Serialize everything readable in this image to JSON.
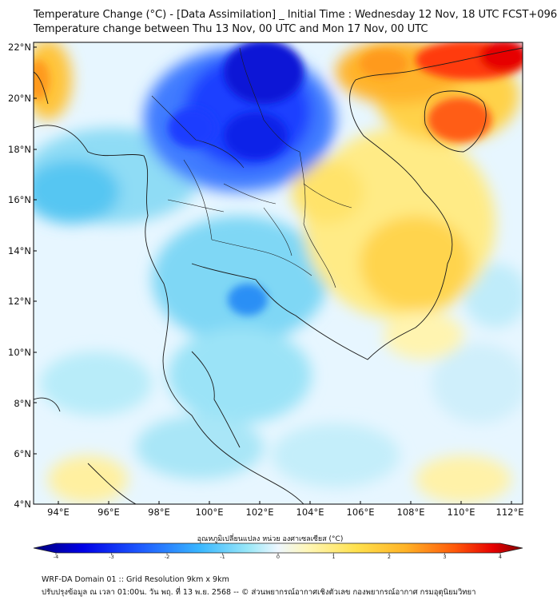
{
  "header": {
    "title_line1": "Temperature Change (°C) - [Data Assimilation] _ Initial Time : Wednesday 12 Nov, 18 UTC FCST+096",
    "title_line2": "Temperature change between Thu 13 Nov, 00 UTC and Mon 17 Nov, 00 UTC"
  },
  "map": {
    "lat_labels": [
      "22°N",
      "20°N",
      "18°N",
      "16°N",
      "14°N",
      "12°N",
      "10°N",
      "8°N",
      "6°N",
      "4°N"
    ],
    "lon_labels": [
      "94°E",
      "96°E",
      "98°E",
      "100°E",
      "102°E",
      "104°E",
      "106°E",
      "108°E",
      "110°E",
      "112°E"
    ],
    "lat_range": [
      4,
      22
    ],
    "lon_range": [
      93,
      112.5
    ]
  },
  "colorbar": {
    "label": "อุณหภูมิเปลี่ยนแปลง หน่วย องศาเซลเซียส (°C)",
    "ticks": [
      "-4",
      "-3",
      "-2",
      "-1",
      "0",
      "1",
      "2",
      "3",
      "4"
    ],
    "range": [
      -4,
      4
    ],
    "colors": [
      "#00007a",
      "#0000e6",
      "#1e5bff",
      "#39b7ff",
      "#6fe2f5",
      "#e9f6ff",
      "#fff7b8",
      "#ffe14d",
      "#ffb326",
      "#ff7a14",
      "#e60000",
      "#800000"
    ]
  },
  "footer": {
    "line1": "WRF-DA Domain 01 :: Grid Resolution 9km x 9km",
    "line2": "ปรับปรุงข้อมูล ณ เวลา 01:00น. วัน พฤ. ที่ 13 พ.ย. 2568 -- © ส่วนพยากรณ์อากาศเชิงตัวเลข กองพยากรณ์อากาศ กรมอุตุนิยมวิทยา"
  }
}
